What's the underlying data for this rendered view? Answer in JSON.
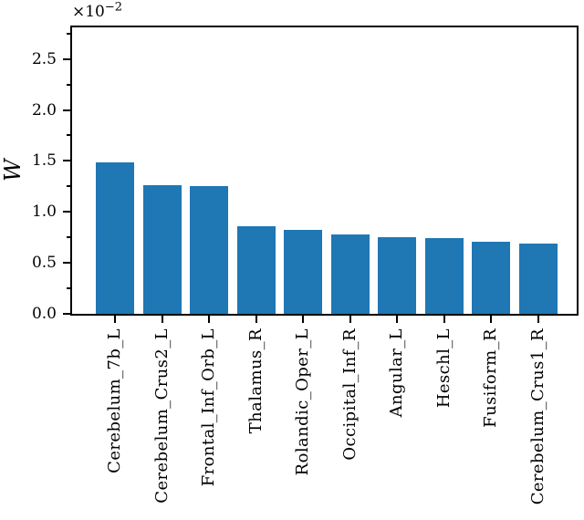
{
  "figure": {
    "background_color": "#ffffff",
    "text_color": "#000000"
  },
  "chart_data": {
    "type": "bar",
    "title": "",
    "xlabel": "",
    "ylabel": "W",
    "scale_label": {
      "base": "×10",
      "exponent": "−2"
    },
    "categories": [
      "Cerebelum_7b_L",
      "Cerebelum_Crus2_L",
      "Frontal_Inf_Orb_L",
      "Thalamus_R",
      "Rolandic_Oper_L",
      "Occipital_Inf_R",
      "Angular_L",
      "Heschl_L",
      "Fusiform_R",
      "Cerebelum_Crus1_R"
    ],
    "values": [
      1.49,
      1.26,
      1.25,
      0.86,
      0.82,
      0.78,
      0.75,
      0.74,
      0.71,
      0.69
    ],
    "values_unit": "×10⁻²",
    "yticks": [
      "0.0",
      "0.5",
      "1.0",
      "1.5",
      "2.0",
      "2.5"
    ],
    "minor_ytick_step": 0.25,
    "ylim": [
      0,
      2.81
    ],
    "grid": false,
    "legend": null,
    "bar_color": "#1f77b4"
  }
}
